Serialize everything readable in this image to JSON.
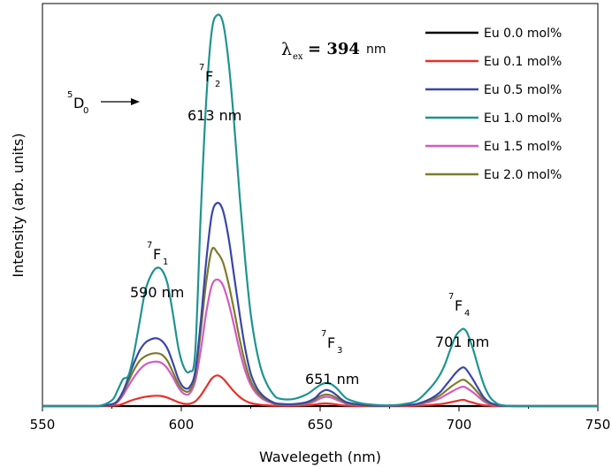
{
  "chart_data": {
    "type": "line",
    "xlabel": "Wavelegeth (nm)",
    "ylabel": "Intensity (arb. units)",
    "xlim": [
      550,
      750
    ],
    "ylim": [
      0,
      1.05
    ],
    "xticks": [
      "550",
      "600",
      "650",
      "700",
      "750"
    ],
    "x": [
      550,
      560,
      570,
      575,
      577,
      579,
      581,
      583,
      585,
      587,
      589,
      591,
      593,
      595,
      597,
      599,
      601,
      603,
      605,
      607,
      609,
      611,
      613,
      615,
      617,
      619,
      621,
      623,
      625,
      627,
      629,
      631,
      633,
      635,
      640,
      645,
      648,
      650,
      652,
      654,
      656,
      658,
      660,
      665,
      670,
      675,
      680,
      685,
      690,
      693,
      695,
      697,
      699,
      701,
      702,
      703,
      705,
      707,
      709,
      711,
      713,
      715,
      720,
      730,
      740,
      750
    ],
    "series": [
      {
        "name": "Eu 0.0 mol%",
        "color": "#000000",
        "values": [
          0,
          0,
          0,
          0,
          0,
          0,
          0,
          0,
          0,
          0,
          0,
          0,
          0,
          0,
          0,
          0,
          0,
          0,
          0,
          0,
          0,
          0,
          0,
          0,
          0,
          0,
          0,
          0,
          0,
          0,
          0,
          0,
          0,
          0,
          0,
          0,
          0,
          0,
          0,
          0,
          0,
          0,
          0,
          0,
          0,
          0,
          0,
          0,
          0,
          0,
          0,
          0,
          0,
          0,
          0,
          0,
          0,
          0,
          0,
          0,
          0,
          0,
          0,
          0,
          0,
          0
        ]
      },
      {
        "name": "Eu 0.1 mol%",
        "color": "#e8302a",
        "values": [
          0,
          0,
          0,
          0.001,
          0.002,
          0.006,
          0.012,
          0.017,
          0.021,
          0.024,
          0.026,
          0.027,
          0.026,
          0.022,
          0.016,
          0.01,
          0.006,
          0.006,
          0.012,
          0.028,
          0.05,
          0.072,
          0.08,
          0.072,
          0.055,
          0.038,
          0.024,
          0.014,
          0.008,
          0.005,
          0.003,
          0.002,
          0.001,
          0.001,
          0.001,
          0.002,
          0.004,
          0.006,
          0.007,
          0.006,
          0.004,
          0.002,
          0.001,
          0,
          0,
          0,
          0,
          0.001,
          0.003,
          0.005,
          0.007,
          0.01,
          0.013,
          0.016,
          0.016,
          0.013,
          0.009,
          0.005,
          0.002,
          0.001,
          0,
          0,
          0,
          0,
          0,
          0
        ]
      },
      {
        "name": "Eu 0.5 mol%",
        "color": "#3a46a8",
        "values": [
          0,
          0,
          0,
          0.005,
          0.014,
          0.038,
          0.075,
          0.113,
          0.145,
          0.165,
          0.174,
          0.177,
          0.17,
          0.15,
          0.112,
          0.07,
          0.048,
          0.05,
          0.09,
          0.22,
          0.38,
          0.5,
          0.53,
          0.51,
          0.44,
          0.34,
          0.24,
          0.15,
          0.085,
          0.05,
          0.03,
          0.018,
          0.01,
          0.006,
          0.005,
          0.01,
          0.02,
          0.034,
          0.042,
          0.038,
          0.028,
          0.016,
          0.009,
          0.003,
          0.001,
          0.001,
          0.002,
          0.006,
          0.02,
          0.035,
          0.052,
          0.07,
          0.088,
          0.1,
          0.1,
          0.092,
          0.07,
          0.045,
          0.022,
          0.01,
          0.004,
          0.001,
          0,
          0,
          0,
          0
        ]
      },
      {
        "name": "Eu 1.0 mol%",
        "color": "#1e9490",
        "values": [
          0,
          0,
          0,
          0.015,
          0.04,
          0.07,
          0.08,
          0.14,
          0.22,
          0.3,
          0.34,
          0.36,
          0.355,
          0.32,
          0.24,
          0.15,
          0.1,
          0.09,
          0.14,
          0.5,
          0.8,
          0.98,
          1.02,
          1.0,
          0.9,
          0.74,
          0.55,
          0.38,
          0.24,
          0.15,
          0.09,
          0.055,
          0.032,
          0.02,
          0.018,
          0.03,
          0.045,
          0.055,
          0.06,
          0.057,
          0.046,
          0.03,
          0.018,
          0.007,
          0.003,
          0.002,
          0.005,
          0.015,
          0.05,
          0.08,
          0.11,
          0.15,
          0.185,
          0.2,
          0.2,
          0.19,
          0.15,
          0.1,
          0.055,
          0.025,
          0.01,
          0.003,
          0,
          0,
          0,
          0
        ]
      },
      {
        "name": "Eu 1.5 mol%",
        "color": "#d25cbf",
        "values": [
          0,
          0,
          0,
          0.004,
          0.01,
          0.028,
          0.053,
          0.076,
          0.095,
          0.108,
          0.114,
          0.116,
          0.112,
          0.098,
          0.075,
          0.048,
          0.032,
          0.033,
          0.064,
          0.145,
          0.245,
          0.315,
          0.33,
          0.315,
          0.27,
          0.21,
          0.145,
          0.092,
          0.055,
          0.033,
          0.02,
          0.012,
          0.007,
          0.004,
          0.003,
          0.006,
          0.012,
          0.02,
          0.024,
          0.022,
          0.016,
          0.01,
          0.005,
          0.002,
          0.001,
          0.001,
          0.002,
          0.004,
          0.012,
          0.02,
          0.028,
          0.036,
          0.044,
          0.05,
          0.05,
          0.046,
          0.036,
          0.024,
          0.012,
          0.005,
          0.002,
          0.001,
          0,
          0,
          0,
          0
        ]
      },
      {
        "name": "Eu 2.0 mol%",
        "color": "#7c7c2a",
        "values": [
          0,
          0,
          0,
          0.004,
          0.012,
          0.034,
          0.065,
          0.095,
          0.118,
          0.13,
          0.136,
          0.138,
          0.134,
          0.118,
          0.088,
          0.057,
          0.04,
          0.041,
          0.078,
          0.195,
          0.325,
          0.408,
          0.4,
          0.375,
          0.32,
          0.25,
          0.175,
          0.112,
          0.066,
          0.04,
          0.024,
          0.015,
          0.008,
          0.005,
          0.004,
          0.008,
          0.016,
          0.026,
          0.03,
          0.028,
          0.021,
          0.013,
          0.007,
          0.002,
          0.001,
          0.001,
          0.002,
          0.005,
          0.016,
          0.027,
          0.038,
          0.05,
          0.06,
          0.068,
          0.068,
          0.063,
          0.05,
          0.033,
          0.017,
          0.007,
          0.003,
          0.001,
          0,
          0,
          0,
          0
        ]
      }
    ],
    "legend_position": "top-right",
    "annotations": {
      "excitation": {
        "lambda": "λ",
        "sub": "ex",
        "eq": "= 394",
        "unit": "nm"
      },
      "d0": {
        "sup": "5",
        "main": "D",
        "sub": "0"
      },
      "f2": {
        "sup": "7",
        "main": "F",
        "sub": "2",
        "wave": "613 nm"
      },
      "f1": {
        "sup": "7",
        "main": "F",
        "sub": "1",
        "wave": "590 nm"
      },
      "f3": {
        "sup": "7",
        "main": "F",
        "sub": "3",
        "wave": "651 nm"
      },
      "f4": {
        "sup": "7",
        "main": "F",
        "sub": "4",
        "wave": "701 nm"
      }
    }
  }
}
